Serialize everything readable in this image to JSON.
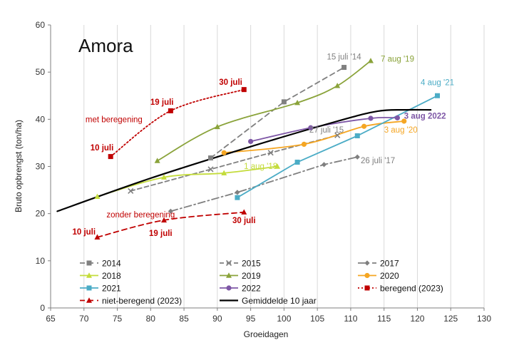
{
  "chart_data": {
    "type": "line",
    "title": "Amora",
    "xlabel": "Groeidagen",
    "ylabel": "Bruto opbrengst (ton/ha)",
    "xlim": [
      65,
      130
    ],
    "ylim": [
      0,
      60
    ],
    "xticks": [
      65,
      70,
      75,
      80,
      85,
      90,
      95,
      100,
      105,
      110,
      115,
      120,
      125,
      130
    ],
    "yticks": [
      0,
      10,
      20,
      30,
      40,
      50,
      60
    ],
    "grid": "vertical",
    "series": [
      {
        "name": "2014",
        "color": "#808080",
        "dash": "7,5",
        "marker": "square",
        "smooth": false,
        "points": [
          [
            89,
            31.8
          ],
          [
            100,
            43.7
          ],
          [
            109,
            51.0
          ]
        ]
      },
      {
        "name": "2015",
        "color": "#7f7f7f",
        "dash": "6,4",
        "marker": "x",
        "smooth": false,
        "points": [
          [
            77,
            24.8
          ],
          [
            89,
            29.4
          ],
          [
            98,
            32.9
          ],
          [
            108,
            36.6
          ]
        ]
      },
      {
        "name": "2017",
        "color": "#7f7f7f",
        "dash": "10,4,2,4",
        "marker": "diamond",
        "smooth": false,
        "points": [
          [
            83,
            20.5
          ],
          [
            93,
            24.5
          ],
          [
            106,
            30.4
          ],
          [
            111,
            32.0
          ]
        ]
      },
      {
        "name": "2018",
        "color": "#c4dc3c",
        "dash": "",
        "marker": "triangle",
        "smooth": true,
        "points": [
          [
            72,
            23.6
          ],
          [
            82,
            27.7
          ],
          [
            91,
            28.6
          ],
          [
            99,
            30.0
          ]
        ]
      },
      {
        "name": "2019",
        "color": "#8aa33a",
        "dash": "",
        "marker": "triangle",
        "smooth": true,
        "points": [
          [
            81,
            31.2
          ],
          [
            90,
            38.4
          ],
          [
            102,
            43.5
          ],
          [
            108,
            47.1
          ],
          [
            113,
            52.4
          ]
        ]
      },
      {
        "name": "2020",
        "color": "#f5a623",
        "dash": "",
        "marker": "circle",
        "smooth": true,
        "points": [
          [
            91,
            32.9
          ],
          [
            103,
            34.7
          ],
          [
            112,
            38.5
          ],
          [
            118,
            39.6
          ]
        ]
      },
      {
        "name": "2021",
        "color": "#4bacc6",
        "dash": "",
        "marker": "square",
        "smooth": false,
        "points": [
          [
            93,
            23.4
          ],
          [
            102,
            30.9
          ],
          [
            111,
            36.5
          ],
          [
            123,
            45.0
          ]
        ]
      },
      {
        "name": "2022",
        "color": "#7e57a6",
        "dash": "",
        "marker": "circle",
        "smooth": true,
        "points": [
          [
            95,
            35.3
          ],
          [
            104,
            38.2
          ],
          [
            113,
            40.2
          ],
          [
            117,
            40.3
          ]
        ]
      },
      {
        "name": "beregend (2023)",
        "color": "#c00000",
        "dash": "2,3",
        "marker": "square",
        "smooth": true,
        "points": [
          [
            74,
            32.1
          ],
          [
            83,
            41.8
          ],
          [
            94,
            46.3
          ]
        ]
      },
      {
        "name": "niet-beregend (2023)",
        "color": "#c00000",
        "dash": "7,5",
        "marker": "triangle",
        "smooth": true,
        "points": [
          [
            72,
            15.0
          ],
          [
            82,
            18.6
          ],
          [
            94,
            20.3
          ]
        ]
      },
      {
        "name": "Gemiddelde 10 jaar",
        "color": "#000000",
        "dash": "",
        "marker": "none",
        "smooth": true,
        "width": 2.2,
        "points": [
          [
            66,
            20.5
          ],
          [
            80,
            27.5
          ],
          [
            95,
            34.2
          ],
          [
            108,
            39.6
          ],
          [
            114,
            41.7
          ],
          [
            118,
            42.0
          ],
          [
            122,
            42.0
          ]
        ]
      }
    ],
    "annotations": [
      {
        "text": "15 juli '14",
        "x": 109,
        "y": 52.7,
        "color": "#808080",
        "bold": false,
        "anchor": "middle"
      },
      {
        "text": "7 aug '19",
        "x": 114.5,
        "y": 52.2,
        "color": "#8aa33a",
        "bold": false,
        "anchor": "start"
      },
      {
        "text": "4 aug '21",
        "x": 123,
        "y": 47.2,
        "color": "#4bacc6",
        "bold": false,
        "anchor": "middle"
      },
      {
        "text": "3 aug 2022",
        "x": 118,
        "y": 40.1,
        "color": "#7e57a6",
        "bold": true,
        "anchor": "start"
      },
      {
        "text": "3 aug '20",
        "x": 115,
        "y": 37.2,
        "color": "#f5a623",
        "bold": false,
        "anchor": "start"
      },
      {
        "text": "27 juli '15",
        "x": 103.8,
        "y": 37.2,
        "color": "#7f7f7f",
        "bold": false,
        "anchor": "start"
      },
      {
        "text": "26 juli '17",
        "x": 111.5,
        "y": 30.7,
        "color": "#7f7f7f",
        "bold": false,
        "anchor": "start"
      },
      {
        "text": "1 aug '18",
        "x": 96.5,
        "y": 29.5,
        "color": "#c4dc3c",
        "bold": false,
        "anchor": "middle"
      },
      {
        "text": "30 juli",
        "x": 92,
        "y": 47.3,
        "color": "#c00000",
        "bold": true,
        "anchor": "middle"
      },
      {
        "text": "19 juli",
        "x": 81.7,
        "y": 43.1,
        "color": "#c00000",
        "bold": true,
        "anchor": "middle"
      },
      {
        "text": "met beregening",
        "x": 74.5,
        "y": 39.4,
        "color": "#c00000",
        "bold": false,
        "anchor": "middle"
      },
      {
        "text": "10 juli",
        "x": 72.7,
        "y": 33.4,
        "color": "#c00000",
        "bold": true,
        "anchor": "middle"
      },
      {
        "text": "zonder beregening",
        "x": 78.5,
        "y": 19.2,
        "color": "#c00000",
        "bold": false,
        "anchor": "middle"
      },
      {
        "text": "10 juli",
        "x": 70,
        "y": 15.6,
        "color": "#c00000",
        "bold": true,
        "anchor": "middle"
      },
      {
        "text": "19 juli",
        "x": 81.5,
        "y": 15.3,
        "color": "#c00000",
        "bold": true,
        "anchor": "middle"
      },
      {
        "text": "30 juli",
        "x": 94,
        "y": 18.0,
        "color": "#c00000",
        "bold": true,
        "anchor": "middle"
      }
    ],
    "legend_placement": "inside-bottom"
  }
}
